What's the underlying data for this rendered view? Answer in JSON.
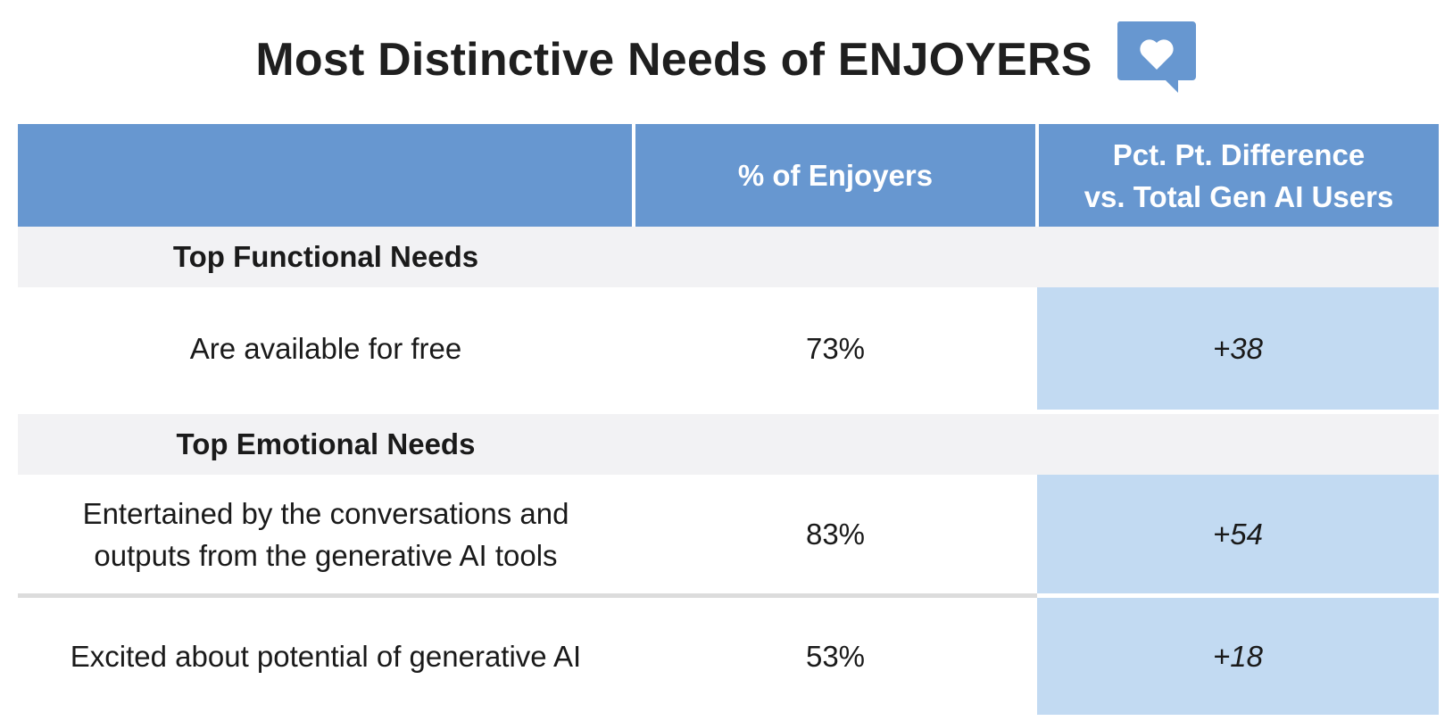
{
  "title": "Most Distinctive Needs of ENJOYERS",
  "icon": "heart-speech-bubble-icon",
  "colors": {
    "header_bg": "#6797d0",
    "section_bg": "#f2f2f4",
    "diff_bg": "#c2daf2",
    "icon_blue": "#6797d0"
  },
  "chart_data": {
    "type": "table",
    "columns": [
      "",
      "% of Enjoyers",
      "Pct. Pt. Difference vs. Total Gen AI Users"
    ],
    "column_header_lines": {
      "pct": [
        "% of Enjoyers"
      ],
      "diff": [
        "Pct. Pt. Difference",
        "vs. Total Gen AI Users"
      ]
    },
    "sections": [
      {
        "label": "Top Functional Needs",
        "rows": [
          {
            "label_lines": [
              "Are available for free"
            ],
            "pct": "73%",
            "diff": "+38"
          }
        ]
      },
      {
        "label": "Top Emotional Needs",
        "rows": [
          {
            "label_lines": [
              "Entertained by the conversations and",
              "outputs from the generative AI tools"
            ],
            "pct": "83%",
            "diff": "+54"
          },
          {
            "label_lines": [
              "Excited about potential of generative AI"
            ],
            "pct": "53%",
            "diff": "+18"
          }
        ]
      }
    ]
  }
}
